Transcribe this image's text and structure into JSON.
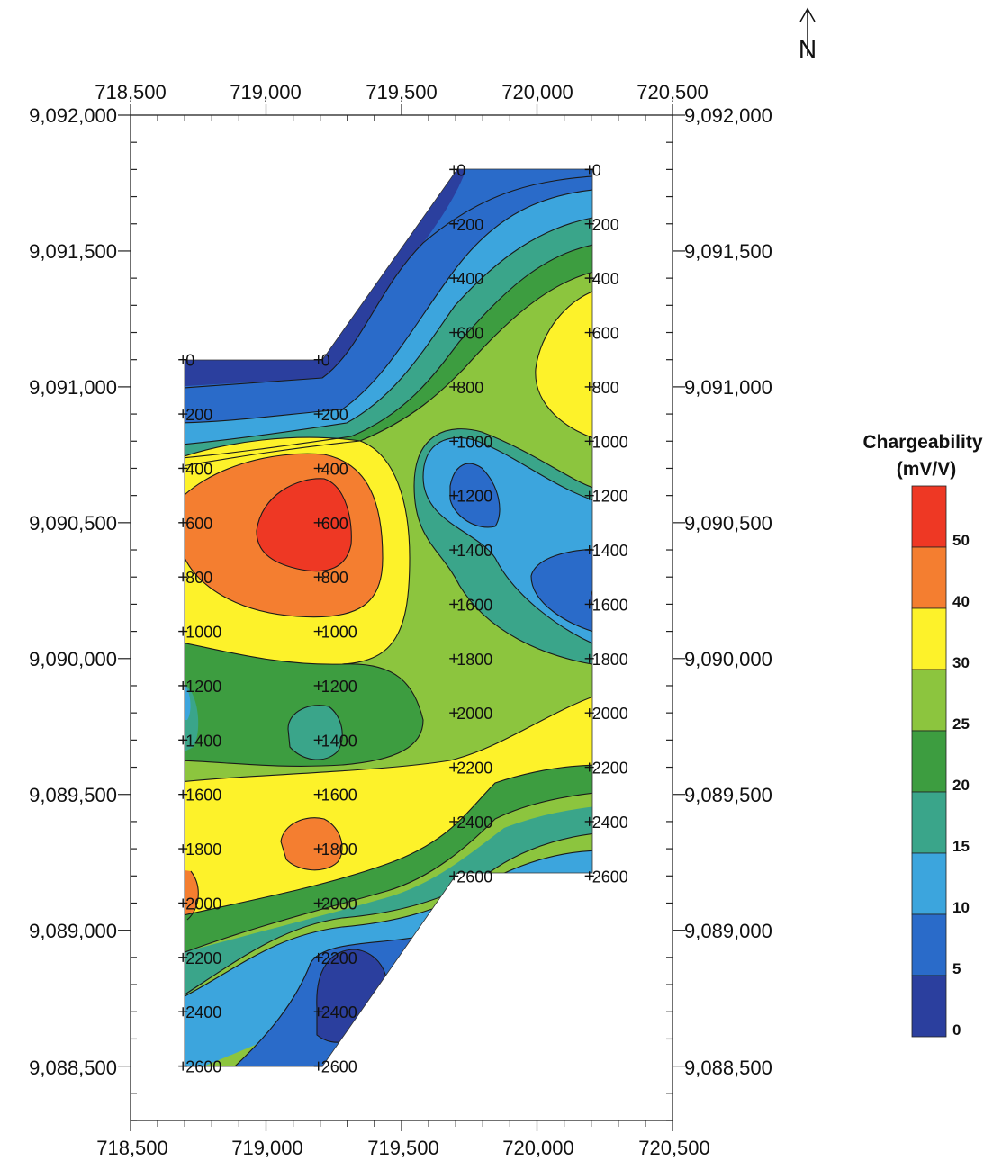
{
  "map": {
    "easting_ticks": [
      "718,500",
      "719,000",
      "719,500",
      "720,000",
      "720,500"
    ],
    "northing_ticks": [
      "9,092,000",
      "9,091,500",
      "9,091,000",
      "9,090,500",
      "9,090,000",
      "9,089,500",
      "9,089,000",
      "9,088,500"
    ],
    "survey_lines": [
      {
        "easting": 718700,
        "stations": [
          "0",
          "200",
          "400",
          "600",
          "800",
          "1000",
          "1200",
          "1400",
          "1600",
          "1800",
          "2000",
          "2200",
          "2400",
          "2600"
        ]
      },
      {
        "easting": 719200,
        "stations": [
          "0",
          "200",
          "400",
          "600",
          "800",
          "1000",
          "1200",
          "1400",
          "1600",
          "1800",
          "2000",
          "2200",
          "2400",
          "2600"
        ]
      },
      {
        "easting": 719700,
        "stations": [
          "0",
          "200",
          "400",
          "600",
          "800",
          "1000",
          "1200",
          "1400",
          "1600",
          "1800",
          "2000",
          "2200",
          "2400",
          "2600"
        ]
      },
      {
        "easting": 720200,
        "stations": [
          "0",
          "200",
          "400",
          "600",
          "800",
          "1000",
          "1200",
          "1400",
          "1600",
          "1800",
          "2000",
          "2200",
          "2400",
          "2600"
        ]
      }
    ],
    "north_arrow_label": "N"
  },
  "legend": {
    "title_line1": "Chargeability",
    "title_line2": "(mV/V)",
    "bands": [
      {
        "min": 0,
        "max": 5,
        "color": "#2b3f9e"
      },
      {
        "min": 5,
        "max": 10,
        "color": "#2a6bc9"
      },
      {
        "min": 10,
        "max": 15,
        "color": "#3ca5dd"
      },
      {
        "min": 15,
        "max": 20,
        "color": "#3aa58a"
      },
      {
        "min": 20,
        "max": 25,
        "color": "#3d9d40"
      },
      {
        "min": 25,
        "max": 30,
        "color": "#8cc53e"
      },
      {
        "min": 30,
        "max": 40,
        "color": "#fdf22a"
      },
      {
        "min": 40,
        "max": 50,
        "color": "#f47e30"
      },
      {
        "min": 50,
        "max": 60,
        "color": "#ee3824"
      }
    ],
    "tick_labels": [
      "0",
      "5",
      "10",
      "15",
      "20",
      "25",
      "30",
      "40",
      "50"
    ]
  }
}
